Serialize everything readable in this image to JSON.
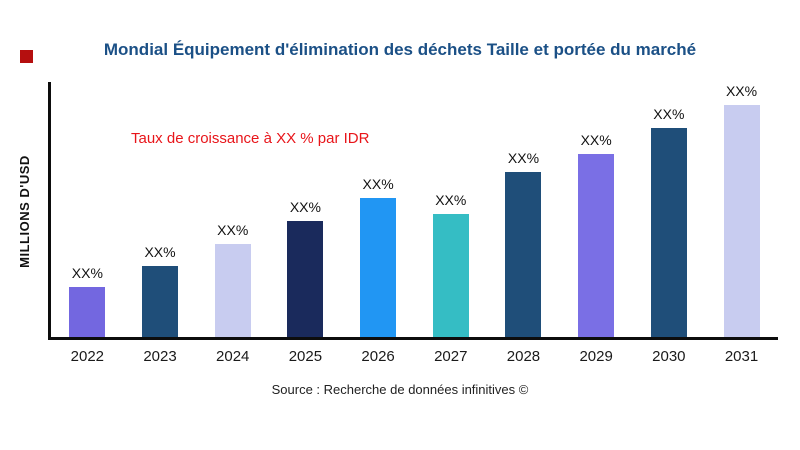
{
  "brand": {
    "logo_color": "#b50f0f"
  },
  "chart_data": {
    "type": "bar",
    "title": "Mondial Équipement d'élimination des déchets Taille et portée du marché",
    "ylabel": "MILLIONS D'USD",
    "xlabel": "",
    "annotation": "Taux de croissance à XX % par IDR",
    "source": "Source : Recherche de données infinitives ©",
    "categories": [
      "2022",
      "2023",
      "2024",
      "2025",
      "2026",
      "2027",
      "2028",
      "2029",
      "2030",
      "2031"
    ],
    "values": [
      21.5,
      30.5,
      40,
      50,
      60,
      53,
      71,
      79,
      90,
      100
    ],
    "value_labels": [
      "XX%",
      "XX%",
      "XX%",
      "XX%",
      "XX%",
      "XX%",
      "XX%",
      "XX%",
      "XX%",
      "XX%"
    ],
    "bar_colors": [
      "#7367e0",
      "#1f4e79",
      "#c8ccf0",
      "#1a2a5c",
      "#2196f3",
      "#35bdc4",
      "#1f4e79",
      "#7a6fe5",
      "#1f4e79",
      "#c8ccf0"
    ],
    "ylim": [
      0,
      110
    ],
    "grid": false,
    "legend": "none"
  }
}
